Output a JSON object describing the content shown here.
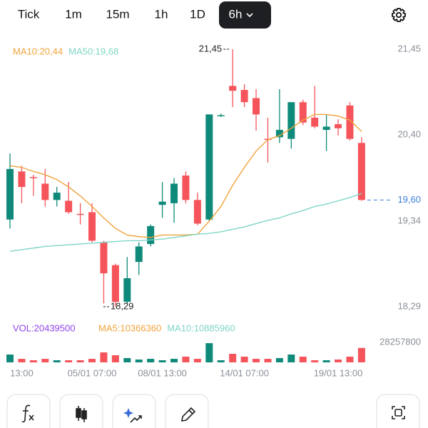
{
  "toolbar": {
    "tabs": [
      "Tick",
      "1m",
      "15m",
      "1h",
      "1D",
      "6h"
    ],
    "selected": 5
  },
  "chart_data": {
    "type": "candlestick",
    "categories": [
      null,
      "13:00",
      null,
      null,
      null,
      null,
      null,
      "05/01 07:00",
      null,
      null,
      null,
      null,
      null,
      "08/01 13:00",
      null,
      null,
      null,
      null,
      null,
      null,
      "14/01 07:00",
      null,
      null,
      null,
      null,
      null,
      null,
      null,
      "19/01 13:00",
      null,
      null
    ],
    "open": [
      19.36,
      19.95,
      19.88,
      19.8,
      19.6,
      19.59,
      19.43,
      19.45,
      19.08,
      18.8,
      18.35,
      18.84,
      19.06,
      19.54,
      19.56,
      19.9,
      19.6,
      19.36,
      20.64,
      21.0,
      20.95,
      20.85,
      20.35,
      20.37,
      20.35,
      20.8,
      20.61,
      20.46,
      20.53,
      20.76,
      20.3
    ],
    "close": [
      19.98,
      19.76,
      19.87,
      19.6,
      19.69,
      19.45,
      19.42,
      19.1,
      18.7,
      18.35,
      18.64,
      19.03,
      19.28,
      19.58,
      19.8,
      19.6,
      19.31,
      20.65,
      20.64,
      20.94,
      20.8,
      20.65,
      20.34,
      20.46,
      20.8,
      20.55,
      20.5,
      20.5,
      20.48,
      20.35,
      19.6
    ],
    "high": [
      20.17,
      20.02,
      19.91,
      19.98,
      19.76,
      19.82,
      19.56,
      19.56,
      19.1,
      18.82,
      18.9,
      19.08,
      19.3,
      19.82,
      19.87,
      19.95,
      19.69,
      20.65,
      20.66,
      21.45,
      21.02,
      20.96,
      20.61,
      20.96,
      20.8,
      20.83,
      21.0,
      20.65,
      20.59,
      20.8,
      20.37
    ],
    "low": [
      19.25,
      19.56,
      19.65,
      19.52,
      19.52,
      19.43,
      19.3,
      19.08,
      18.33,
      18.29,
      18.33,
      18.68,
      19.03,
      19.38,
      19.32,
      19.56,
      19.29,
      19.34,
      20.62,
      20.74,
      20.74,
      20.45,
      20.06,
      20.3,
      20.23,
      20.52,
      20.48,
      20.2,
      20.39,
      20.33,
      19.59
    ],
    "up_color": "#0f8a7a",
    "down_color": "#f5545b",
    "ylim": [
      18.29,
      21.45
    ],
    "yticks": [
      {
        "value": 21.45,
        "label": "21,45"
      },
      {
        "value": 20.4,
        "label": "20,40"
      },
      {
        "value": 19.34,
        "label": "19,34"
      },
      {
        "value": 18.29,
        "label": "18,29"
      }
    ],
    "series": [
      {
        "name": "MA10:20,44",
        "color": "#f0a33a",
        "values": [
          20.02,
          20.0,
          19.95,
          19.91,
          19.85,
          19.76,
          19.65,
          19.52,
          19.38,
          19.25,
          19.17,
          19.15,
          19.14,
          19.17,
          19.17,
          19.17,
          19.18,
          19.34,
          19.52,
          19.78,
          20.0,
          20.2,
          20.34,
          20.39,
          20.48,
          20.58,
          20.65,
          20.65,
          20.63,
          20.58,
          20.44
        ]
      },
      {
        "name": "MA50:19,68",
        "color": "#7fd6c6",
        "values": [
          18.97,
          18.99,
          19.01,
          19.03,
          19.04,
          19.05,
          19.06,
          19.07,
          19.08,
          19.09,
          19.1,
          19.1,
          19.11,
          19.12,
          19.14,
          19.16,
          19.18,
          19.19,
          19.21,
          19.24,
          19.27,
          19.31,
          19.35,
          19.38,
          19.43,
          19.47,
          19.52,
          19.55,
          19.59,
          19.63,
          19.68
        ]
      }
    ],
    "high_label": {
      "value": 21.45,
      "label": "21,45"
    },
    "low_label": {
      "value": 18.29,
      "label": "18,29"
    },
    "last_price": {
      "value": 19.6,
      "label": "19,60",
      "color": "#3b7ddd"
    },
    "volume": {
      "name": "VOL:20439500",
      "color": "#8e44ec",
      "values": [
        11100000,
        5000000,
        3000000,
        5000000,
        3000000,
        3000000,
        3000000,
        5000000,
        14100000,
        10100000,
        6100000,
        4000000,
        5000000,
        3000000,
        5000000,
        8100000,
        5000000,
        27200000,
        3000000,
        12100000,
        8100000,
        5000000,
        5000000,
        6100000,
        11100000,
        8100000,
        3000000,
        3000000,
        4000000,
        8100000,
        20439500
      ],
      "ylim": [
        0,
        28257800
      ],
      "yticks": [
        28257800
      ],
      "ma": [
        {
          "name": "MA5:10366360",
          "color": "#f0a33a"
        },
        {
          "name": "MA10:10885960",
          "color": "#7fd6c6"
        }
      ]
    }
  }
}
